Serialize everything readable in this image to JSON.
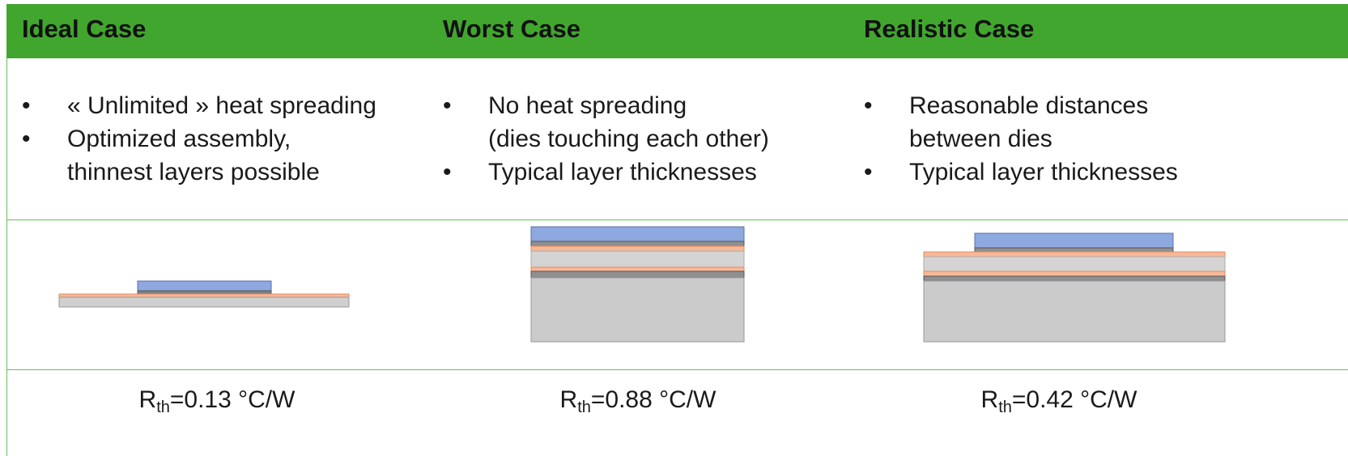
{
  "columns": [
    {
      "title": "Ideal Case",
      "bullets": [
        "« Unlimited » heat spreading",
        "Optimized assembly,\nthinnest layers possible"
      ],
      "rth": {
        "symbol": "R",
        "subscript": "th",
        "text": "=0.13 °C/W"
      }
    },
    {
      "title": "Worst Case",
      "bullets": [
        "No heat spreading\n(dies touching each other)",
        "Typical layer thicknesses"
      ],
      "rth": {
        "symbol": "R",
        "subscript": "th",
        "text": "=0.88 °C/W"
      }
    },
    {
      "title": "Realistic Case",
      "bullets": [
        "Reasonable distances\nbetween dies",
        "Typical layer thicknesses"
      ],
      "rth": {
        "symbol": "R",
        "subscript": "th",
        "text": "=0.42 °C/W"
      }
    }
  ]
}
